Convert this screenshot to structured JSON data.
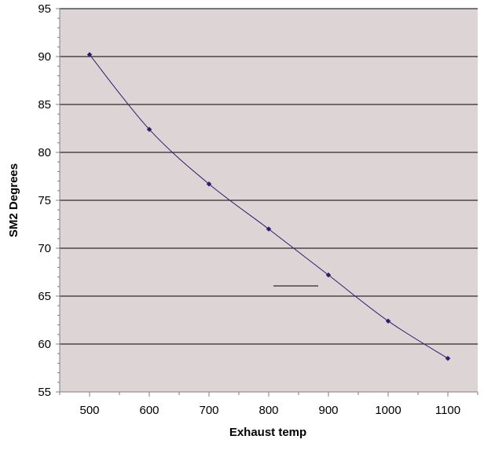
{
  "chart_data": {
    "type": "line",
    "title": "",
    "xlabel": "Exhaust temp",
    "ylabel": "SM2 Degrees",
    "x": [
      500,
      600,
      700,
      800,
      900,
      1000,
      1100
    ],
    "series": [
      {
        "values": [
          90.2,
          82.4,
          76.7,
          72.0,
          67.2,
          62.4,
          58.5
        ],
        "color": "#2E1A70"
      }
    ],
    "xlim": [
      450,
      1150
    ],
    "ylim": [
      55,
      95
    ],
    "xticks": [
      500,
      600,
      700,
      800,
      900,
      1000,
      1100
    ],
    "yticks": [
      55,
      60,
      65,
      70,
      75,
      80,
      85,
      90,
      95
    ],
    "grid": true,
    "legend": "none",
    "colors": {
      "plot_background": "#DDD5D5",
      "gridline": "#000000",
      "series": "#2E1A70"
    }
  }
}
